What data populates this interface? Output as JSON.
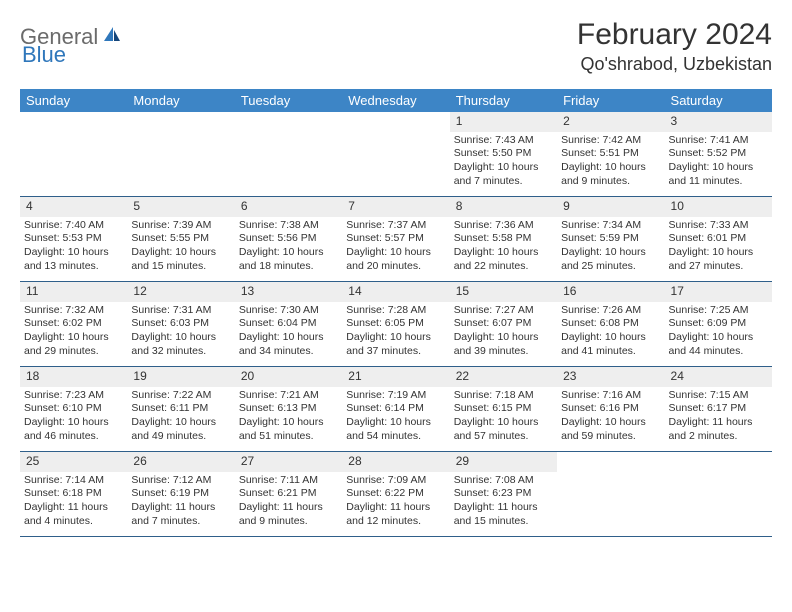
{
  "logo": {
    "text1": "General",
    "text2": "Blue"
  },
  "title": "February 2024",
  "location": "Qo'shrabod, Uzbekistan",
  "colors": {
    "header_bg": "#3d85c6",
    "daynum_bg": "#eeeeee",
    "week_border": "#2f5f8a",
    "text": "#333333",
    "logo_gray": "#6b6b6b",
    "logo_blue": "#2f77bb"
  },
  "dow": [
    "Sunday",
    "Monday",
    "Tuesday",
    "Wednesday",
    "Thursday",
    "Friday",
    "Saturday"
  ],
  "weeks": [
    [
      {
        "n": "",
        "lines": []
      },
      {
        "n": "",
        "lines": []
      },
      {
        "n": "",
        "lines": []
      },
      {
        "n": "",
        "lines": []
      },
      {
        "n": "1",
        "lines": [
          "Sunrise: 7:43 AM",
          "Sunset: 5:50 PM",
          "Daylight: 10 hours",
          "and 7 minutes."
        ]
      },
      {
        "n": "2",
        "lines": [
          "Sunrise: 7:42 AM",
          "Sunset: 5:51 PM",
          "Daylight: 10 hours",
          "and 9 minutes."
        ]
      },
      {
        "n": "3",
        "lines": [
          "Sunrise: 7:41 AM",
          "Sunset: 5:52 PM",
          "Daylight: 10 hours",
          "and 11 minutes."
        ]
      }
    ],
    [
      {
        "n": "4",
        "lines": [
          "Sunrise: 7:40 AM",
          "Sunset: 5:53 PM",
          "Daylight: 10 hours",
          "and 13 minutes."
        ]
      },
      {
        "n": "5",
        "lines": [
          "Sunrise: 7:39 AM",
          "Sunset: 5:55 PM",
          "Daylight: 10 hours",
          "and 15 minutes."
        ]
      },
      {
        "n": "6",
        "lines": [
          "Sunrise: 7:38 AM",
          "Sunset: 5:56 PM",
          "Daylight: 10 hours",
          "and 18 minutes."
        ]
      },
      {
        "n": "7",
        "lines": [
          "Sunrise: 7:37 AM",
          "Sunset: 5:57 PM",
          "Daylight: 10 hours",
          "and 20 minutes."
        ]
      },
      {
        "n": "8",
        "lines": [
          "Sunrise: 7:36 AM",
          "Sunset: 5:58 PM",
          "Daylight: 10 hours",
          "and 22 minutes."
        ]
      },
      {
        "n": "9",
        "lines": [
          "Sunrise: 7:34 AM",
          "Sunset: 5:59 PM",
          "Daylight: 10 hours",
          "and 25 minutes."
        ]
      },
      {
        "n": "10",
        "lines": [
          "Sunrise: 7:33 AM",
          "Sunset: 6:01 PM",
          "Daylight: 10 hours",
          "and 27 minutes."
        ]
      }
    ],
    [
      {
        "n": "11",
        "lines": [
          "Sunrise: 7:32 AM",
          "Sunset: 6:02 PM",
          "Daylight: 10 hours",
          "and 29 minutes."
        ]
      },
      {
        "n": "12",
        "lines": [
          "Sunrise: 7:31 AM",
          "Sunset: 6:03 PM",
          "Daylight: 10 hours",
          "and 32 minutes."
        ]
      },
      {
        "n": "13",
        "lines": [
          "Sunrise: 7:30 AM",
          "Sunset: 6:04 PM",
          "Daylight: 10 hours",
          "and 34 minutes."
        ]
      },
      {
        "n": "14",
        "lines": [
          "Sunrise: 7:28 AM",
          "Sunset: 6:05 PM",
          "Daylight: 10 hours",
          "and 37 minutes."
        ]
      },
      {
        "n": "15",
        "lines": [
          "Sunrise: 7:27 AM",
          "Sunset: 6:07 PM",
          "Daylight: 10 hours",
          "and 39 minutes."
        ]
      },
      {
        "n": "16",
        "lines": [
          "Sunrise: 7:26 AM",
          "Sunset: 6:08 PM",
          "Daylight: 10 hours",
          "and 41 minutes."
        ]
      },
      {
        "n": "17",
        "lines": [
          "Sunrise: 7:25 AM",
          "Sunset: 6:09 PM",
          "Daylight: 10 hours",
          "and 44 minutes."
        ]
      }
    ],
    [
      {
        "n": "18",
        "lines": [
          "Sunrise: 7:23 AM",
          "Sunset: 6:10 PM",
          "Daylight: 10 hours",
          "and 46 minutes."
        ]
      },
      {
        "n": "19",
        "lines": [
          "Sunrise: 7:22 AM",
          "Sunset: 6:11 PM",
          "Daylight: 10 hours",
          "and 49 minutes."
        ]
      },
      {
        "n": "20",
        "lines": [
          "Sunrise: 7:21 AM",
          "Sunset: 6:13 PM",
          "Daylight: 10 hours",
          "and 51 minutes."
        ]
      },
      {
        "n": "21",
        "lines": [
          "Sunrise: 7:19 AM",
          "Sunset: 6:14 PM",
          "Daylight: 10 hours",
          "and 54 minutes."
        ]
      },
      {
        "n": "22",
        "lines": [
          "Sunrise: 7:18 AM",
          "Sunset: 6:15 PM",
          "Daylight: 10 hours",
          "and 57 minutes."
        ]
      },
      {
        "n": "23",
        "lines": [
          "Sunrise: 7:16 AM",
          "Sunset: 6:16 PM",
          "Daylight: 10 hours",
          "and 59 minutes."
        ]
      },
      {
        "n": "24",
        "lines": [
          "Sunrise: 7:15 AM",
          "Sunset: 6:17 PM",
          "Daylight: 11 hours",
          "and 2 minutes."
        ]
      }
    ],
    [
      {
        "n": "25",
        "lines": [
          "Sunrise: 7:14 AM",
          "Sunset: 6:18 PM",
          "Daylight: 11 hours",
          "and 4 minutes."
        ]
      },
      {
        "n": "26",
        "lines": [
          "Sunrise: 7:12 AM",
          "Sunset: 6:19 PM",
          "Daylight: 11 hours",
          "and 7 minutes."
        ]
      },
      {
        "n": "27",
        "lines": [
          "Sunrise: 7:11 AM",
          "Sunset: 6:21 PM",
          "Daylight: 11 hours",
          "and 9 minutes."
        ]
      },
      {
        "n": "28",
        "lines": [
          "Sunrise: 7:09 AM",
          "Sunset: 6:22 PM",
          "Daylight: 11 hours",
          "and 12 minutes."
        ]
      },
      {
        "n": "29",
        "lines": [
          "Sunrise: 7:08 AM",
          "Sunset: 6:23 PM",
          "Daylight: 11 hours",
          "and 15 minutes."
        ]
      },
      {
        "n": "",
        "lines": []
      },
      {
        "n": "",
        "lines": []
      }
    ]
  ]
}
